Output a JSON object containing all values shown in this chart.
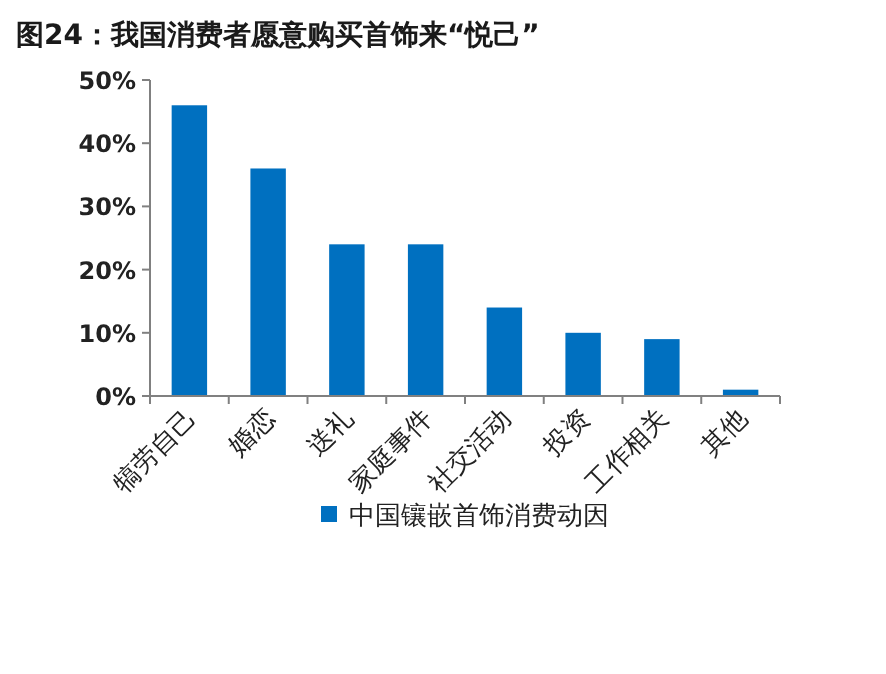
{
  "chart_data": {
    "type": "bar",
    "title": "图24：我国消费者愿意购买首饰来“悦己”",
    "categories": [
      "犒劳自己",
      "婚恋",
      "送礼",
      "家庭事件",
      "社交活动",
      "投资",
      "工作相关",
      "其他"
    ],
    "series": [
      {
        "name": "中国镶嵌首饰消费动因",
        "color": "#0070c0",
        "values": [
          46,
          36,
          24,
          24,
          14,
          10,
          9,
          1
        ]
      }
    ],
    "ylim": [
      0,
      50
    ],
    "yticks": [
      {
        "value": 0,
        "label": "0%"
      },
      {
        "value": 10,
        "label": "10%"
      },
      {
        "value": 20,
        "label": "20%"
      },
      {
        "value": 30,
        "label": "30%"
      },
      {
        "value": 40,
        "label": "40%"
      },
      {
        "value": 50,
        "label": "50%"
      }
    ],
    "legend": "bottom"
  }
}
